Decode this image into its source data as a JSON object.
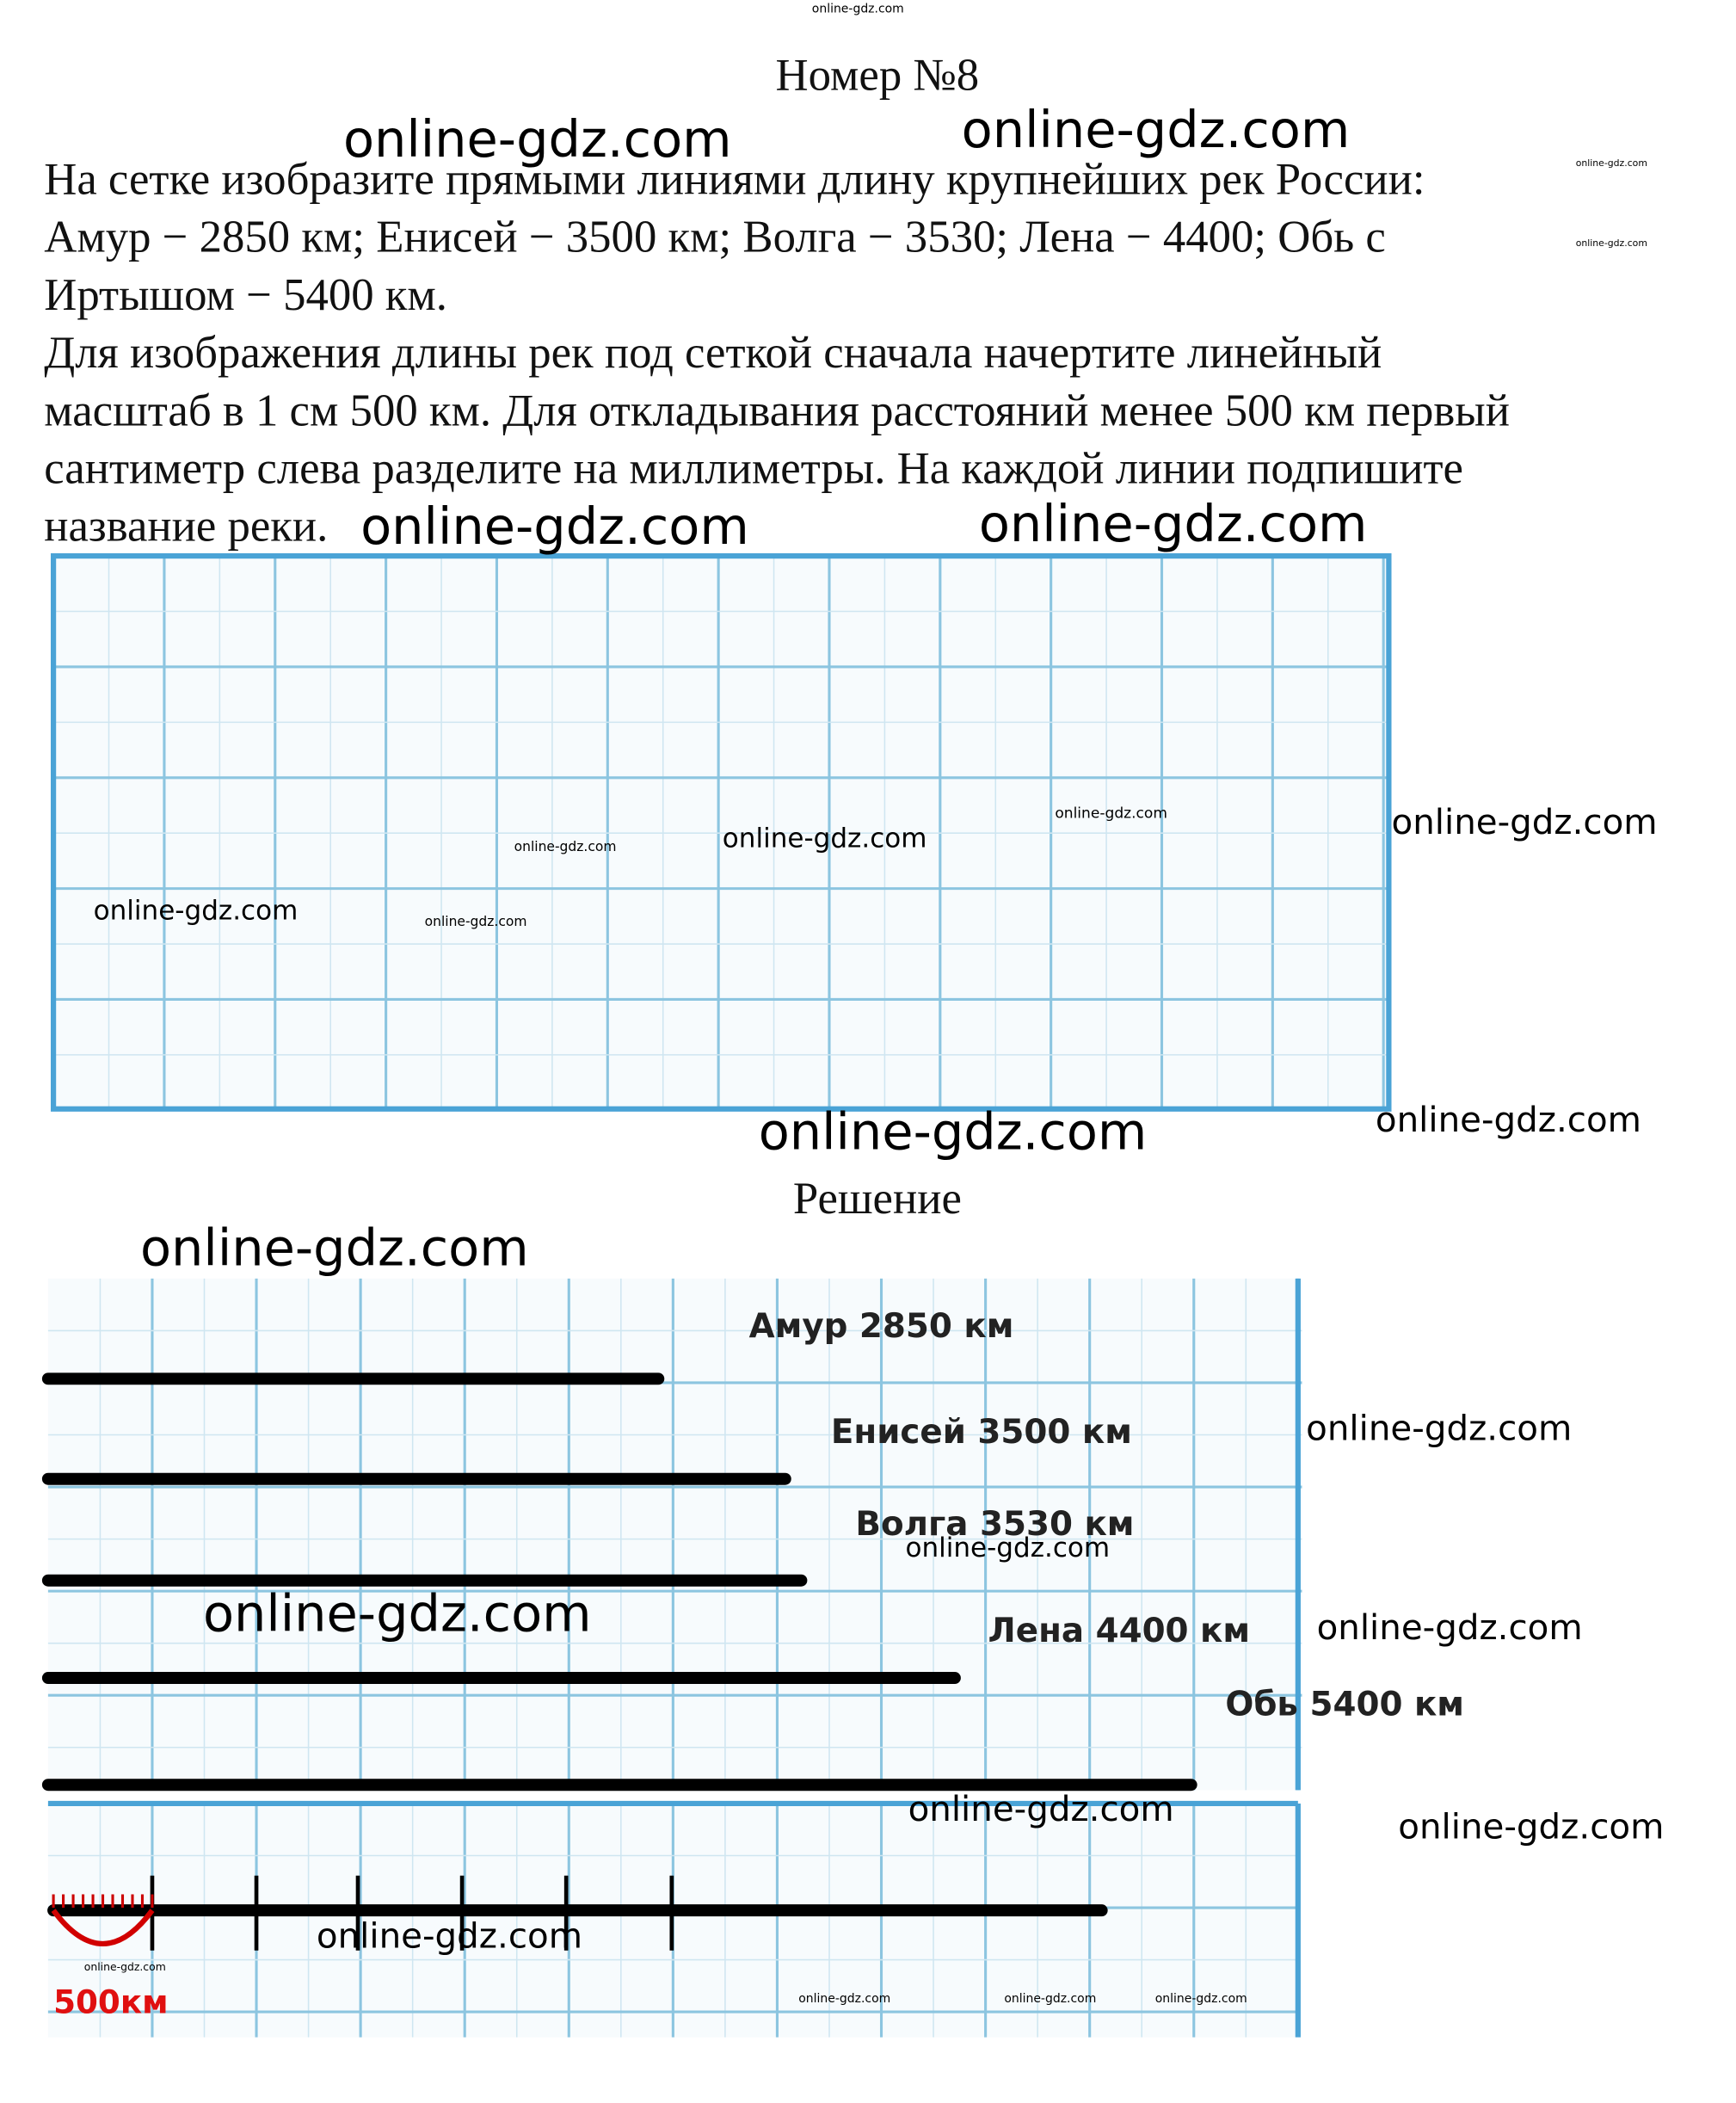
{
  "header": {
    "title": "Номер №8"
  },
  "problem": {
    "lines": [
      "На сетке изобразите прямыми линиями длину крупнейших рек России:",
      "Амур − 2850 км; Енисей − 3500 км; Волга − 3530; Лена − 4400; Обь с",
      "Иртышом − 5400 км.",
      "Для изображения длины рек под сеткой сначала начертите линейный",
      "масштаб в 1 см 500 км. Для откладывания расстояний менее 500 км первый",
      "сантиметр слева разделите на миллиметры. На каждой линии подпишите",
      "название реки."
    ]
  },
  "solution": {
    "title": "Решение",
    "rivers": [
      "Амур 2850 км",
      "Енисей 3500 км",
      "Волга 3530 км",
      "Лена 4400 км",
      "Обь 5400 км"
    ],
    "scale_label": "500км"
  },
  "watermark": "online-gdz.com"
}
